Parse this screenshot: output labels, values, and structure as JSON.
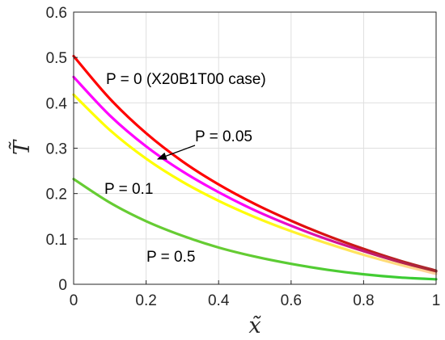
{
  "chart_data": {
    "type": "line",
    "xlabel": "x̃",
    "ylabel": "T̃",
    "xlim": [
      0,
      1
    ],
    "ylim": [
      0,
      0.6
    ],
    "xticks": [
      "0",
      "0.2",
      "0.4",
      "0.6",
      "0.8",
      "1"
    ],
    "yticks": [
      "0",
      "0.1",
      "0.2",
      "0.3",
      "0.4",
      "0.5",
      "0.6"
    ],
    "grid": true,
    "series": [
      {
        "name": "P = 0 (X20B1T00 case)",
        "color_start": "#ff0000",
        "color_end": "#a52a2a",
        "x": [
          0,
          0.1,
          0.2,
          0.3,
          0.4,
          0.5,
          0.6,
          0.7,
          0.8,
          0.9,
          1.0
        ],
        "y": [
          0.503,
          0.409,
          0.333,
          0.271,
          0.22,
          0.177,
          0.14,
          0.107,
          0.078,
          0.052,
          0.03
        ]
      },
      {
        "name": "P = 0.05",
        "color_start": "#ff00ff",
        "color_end": "#a52a2a",
        "x": [
          0,
          0.1,
          0.2,
          0.3,
          0.4,
          0.5,
          0.6,
          0.7,
          0.8,
          0.9,
          1.0
        ],
        "y": [
          0.457,
          0.372,
          0.304,
          0.249,
          0.203,
          0.163,
          0.129,
          0.099,
          0.073,
          0.049,
          0.028
        ]
      },
      {
        "name": "P = 0.1",
        "color_start": "#ffff00",
        "color_end": "#ffd0a0",
        "x": [
          0,
          0.1,
          0.2,
          0.3,
          0.4,
          0.5,
          0.6,
          0.7,
          0.8,
          0.9,
          1.0
        ],
        "y": [
          0.418,
          0.34,
          0.277,
          0.226,
          0.184,
          0.148,
          0.117,
          0.09,
          0.065,
          0.043,
          0.023
        ]
      },
      {
        "name": "P = 0.5",
        "color_start": "#66cc33",
        "color_end": "#33cc33",
        "x": [
          0,
          0.1,
          0.2,
          0.3,
          0.4,
          0.5,
          0.6,
          0.7,
          0.8,
          0.9,
          1.0
        ],
        "y": [
          0.232,
          0.18,
          0.139,
          0.107,
          0.081,
          0.061,
          0.045,
          0.032,
          0.022,
          0.015,
          0.011
        ]
      }
    ],
    "annotations": [
      {
        "text": "P = 0 (X20B1T00 case)"
      },
      {
        "text": "P = 0.05",
        "arrow": true
      },
      {
        "text": "P = 0.1"
      },
      {
        "text": "P = 0.5"
      }
    ]
  }
}
